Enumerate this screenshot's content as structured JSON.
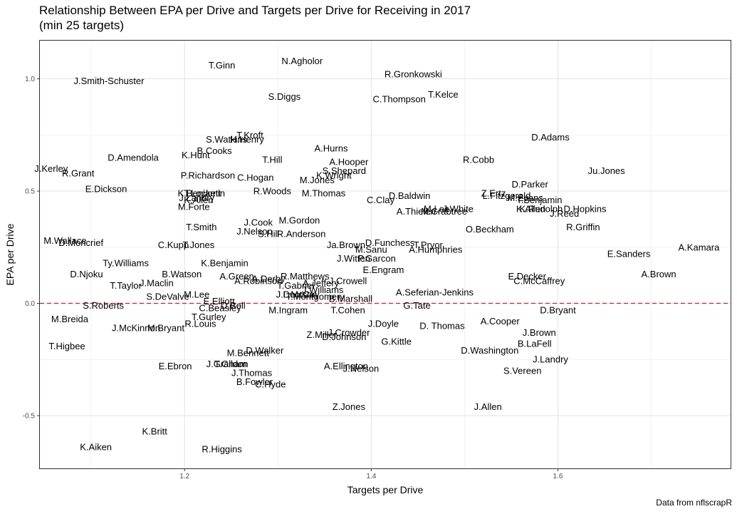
{
  "chart_data": {
    "type": "scatter",
    "title_line1": "Relationship Between EPA per Drive and Targets per Drive for Receiving in 2017",
    "title_line2": "(min 25 targets)",
    "xlabel": "Targets per Drive",
    "ylabel": "EPA per Drive",
    "caption": "Data from nflscrapR",
    "xlim": [
      1.045,
      1.785
    ],
    "ylim": [
      -0.735,
      1.17
    ],
    "xticks": [
      1.2,
      1.4,
      1.6
    ],
    "xtick_labels": [
      "1.2",
      "1.4",
      "1.6"
    ],
    "yticks": [
      -0.5,
      0.0,
      0.5,
      1.0
    ],
    "ytick_labels": [
      "-0.5",
      "0.0",
      "0.5",
      "1.0"
    ],
    "xminor": [
      1.1,
      1.3,
      1.5,
      1.7
    ],
    "yminor": [
      -0.25,
      0.25,
      0.75
    ],
    "hline": 0,
    "grid": true,
    "points": [
      {
        "label": "N.Agholor",
        "x": 1.326,
        "y": 1.08
      },
      {
        "label": "T.Ginn",
        "x": 1.24,
        "y": 1.06
      },
      {
        "label": "J.Smith-Schuster",
        "x": 1.119,
        "y": 0.99
      },
      {
        "label": "R.Gronkowski",
        "x": 1.445,
        "y": 1.02
      },
      {
        "label": "S.Diggs",
        "x": 1.307,
        "y": 0.92
      },
      {
        "label": "C.Thompson",
        "x": 1.43,
        "y": 0.91
      },
      {
        "label": "T.Kelce",
        "x": 1.477,
        "y": 0.93
      },
      {
        "label": "D.Adams",
        "x": 1.592,
        "y": 0.74
      },
      {
        "label": "T.Kroft",
        "x": 1.27,
        "y": 0.75
      },
      {
        "label": "H.Henry",
        "x": 1.267,
        "y": 0.73
      },
      {
        "label": "S.Watkins",
        "x": 1.245,
        "y": 0.73
      },
      {
        "label": "B.Cooks",
        "x": 1.232,
        "y": 0.68
      },
      {
        "label": "A.Hurns",
        "x": 1.357,
        "y": 0.69
      },
      {
        "label": "D.Amendola",
        "x": 1.145,
        "y": 0.65
      },
      {
        "label": "K.Hunt",
        "x": 1.212,
        "y": 0.66
      },
      {
        "label": "T.Hill",
        "x": 1.294,
        "y": 0.64
      },
      {
        "label": "A.Hooper",
        "x": 1.376,
        "y": 0.63
      },
      {
        "label": "R.Cobb",
        "x": 1.515,
        "y": 0.64
      },
      {
        "label": "S.Shepard",
        "x": 1.371,
        "y": 0.59
      },
      {
        "label": "K.Wright",
        "x": 1.36,
        "y": 0.57
      },
      {
        "label": "J.Kerley",
        "x": 1.057,
        "y": 0.6
      },
      {
        "label": "R.Grant",
        "x": 1.086,
        "y": 0.58
      },
      {
        "label": "Ju.Jones",
        "x": 1.652,
        "y": 0.59
      },
      {
        "label": "P.Richardson",
        "x": 1.225,
        "y": 0.57
      },
      {
        "label": "C.Hogan",
        "x": 1.276,
        "y": 0.56
      },
      {
        "label": "M.Jones",
        "x": 1.342,
        "y": 0.55
      },
      {
        "label": "D.Parker",
        "x": 1.57,
        "y": 0.53
      },
      {
        "label": "E.Dickson",
        "x": 1.116,
        "y": 0.51
      },
      {
        "label": "R.Woods",
        "x": 1.294,
        "y": 0.5
      },
      {
        "label": "M.Thomas",
        "x": 1.349,
        "y": 0.49
      },
      {
        "label": "T.Lockett",
        "x": 1.219,
        "y": 0.49
      },
      {
        "label": "K.Benjamin",
        "x": 1.218,
        "y": 0.49
      },
      {
        "label": "J.Landry",
        "x": 1.213,
        "y": 0.47
      },
      {
        "label": "K.Allen",
        "x": 1.215,
        "y": 0.46
      },
      {
        "label": "D.Baldwin",
        "x": 1.441,
        "y": 0.48
      },
      {
        "label": "C.Clay",
        "x": 1.41,
        "y": 0.46
      },
      {
        "label": "Z.Ertz",
        "x": 1.531,
        "y": 0.49
      },
      {
        "label": "L.Fitzgerald",
        "x": 1.545,
        "y": 0.48
      },
      {
        "label": "M.Evans",
        "x": 1.565,
        "y": 0.47
      },
      {
        "label": "T.Benjamin",
        "x": 1.58,
        "y": 0.46
      },
      {
        "label": "M.Forte",
        "x": 1.21,
        "y": 0.43
      },
      {
        "label": "A.Thielen",
        "x": 1.448,
        "y": 0.41
      },
      {
        "label": "M.Crabtree",
        "x": 1.478,
        "y": 0.41
      },
      {
        "label": "M.Lee",
        "x": 1.47,
        "y": 0.42
      },
      {
        "label": "J.White",
        "x": 1.493,
        "y": 0.42
      },
      {
        "label": "K.Allen",
        "x": 1.571,
        "y": 0.42
      },
      {
        "label": "K.Rudolph",
        "x": 1.582,
        "y": 0.42
      },
      {
        "label": "D.Hopkins",
        "x": 1.629,
        "y": 0.42
      },
      {
        "label": "J.Reed",
        "x": 1.607,
        "y": 0.4
      },
      {
        "label": "M.Gordon",
        "x": 1.323,
        "y": 0.37
      },
      {
        "label": "J.Cook",
        "x": 1.279,
        "y": 0.36
      },
      {
        "label": "T.Smith",
        "x": 1.218,
        "y": 0.34
      },
      {
        "label": "J.Nelson",
        "x": 1.275,
        "y": 0.32
      },
      {
        "label": "S.Hill",
        "x": 1.29,
        "y": 0.31
      },
      {
        "label": "R.Anderson",
        "x": 1.325,
        "y": 0.31
      },
      {
        "label": "O.Beckham",
        "x": 1.527,
        "y": 0.33
      },
      {
        "label": "R.Griffin",
        "x": 1.627,
        "y": 0.34
      },
      {
        "label": "M.Wallace",
        "x": 1.072,
        "y": 0.28
      },
      {
        "label": "D.Moncrief",
        "x": 1.089,
        "y": 0.27
      },
      {
        "label": "C.Kupp",
        "x": 1.188,
        "y": 0.26
      },
      {
        "label": "T.Jones",
        "x": 1.215,
        "y": 0.26
      },
      {
        "label": "Ja.Brown",
        "x": 1.373,
        "y": 0.26
      },
      {
        "label": "D.Funchess",
        "x": 1.42,
        "y": 0.27
      },
      {
        "label": "T.Pryor",
        "x": 1.461,
        "y": 0.26
      },
      {
        "label": "A.Humphries",
        "x": 1.469,
        "y": 0.24
      },
      {
        "label": "M.Sanu",
        "x": 1.4,
        "y": 0.24
      },
      {
        "label": "A.Kamara",
        "x": 1.751,
        "y": 0.25
      },
      {
        "label": "E.Sanders",
        "x": 1.676,
        "y": 0.22
      },
      {
        "label": "J.Witten",
        "x": 1.381,
        "y": 0.2
      },
      {
        "label": "P.Garcon",
        "x": 1.406,
        "y": 0.2
      },
      {
        "label": "Ty.Williams",
        "x": 1.137,
        "y": 0.18
      },
      {
        "label": "K.Benjamin",
        "x": 1.243,
        "y": 0.18
      },
      {
        "label": "E.Engram",
        "x": 1.413,
        "y": 0.15
      },
      {
        "label": "D.Njoku",
        "x": 1.095,
        "y": 0.13
      },
      {
        "label": "B.Watson",
        "x": 1.197,
        "y": 0.13
      },
      {
        "label": "R.Matthews",
        "x": 1.329,
        "y": 0.12
      },
      {
        "label": "A.Green",
        "x": 1.256,
        "y": 0.12
      },
      {
        "label": "A.Derby",
        "x": 1.29,
        "y": 0.11
      },
      {
        "label": "A.Robinson",
        "x": 1.279,
        "y": 0.1
      },
      {
        "label": "J.Crowell",
        "x": 1.375,
        "y": 0.1
      },
      {
        "label": "A.Jeffery",
        "x": 1.346,
        "y": 0.09
      },
      {
        "label": "E.Decker",
        "x": 1.567,
        "y": 0.12
      },
      {
        "label": "A.Brown",
        "x": 1.708,
        "y": 0.13
      },
      {
        "label": "C.McCaffrey",
        "x": 1.58,
        "y": 0.1
      },
      {
        "label": "J.Maclin",
        "x": 1.17,
        "y": 0.09
      },
      {
        "label": "T.Taylor",
        "x": 1.137,
        "y": 0.08
      },
      {
        "label": "T.Gabriel",
        "x": 1.319,
        "y": 0.08
      },
      {
        "label": "J.Williams",
        "x": 1.348,
        "y": 0.06
      },
      {
        "label": "M.Lee",
        "x": 1.213,
        "y": 0.04
      },
      {
        "label": "S.DeValve",
        "x": 1.182,
        "y": 0.03
      },
      {
        "label": "A.Seferian-Jenkins",
        "x": 1.468,
        "y": 0.05
      },
      {
        "label": "J.Doctson",
        "x": 1.32,
        "y": 0.04
      },
      {
        "label": "L.McCoy",
        "x": 1.325,
        "y": 0.04
      },
      {
        "label": "T.Montgomery",
        "x": 1.34,
        "y": 0.03
      },
      {
        "label": "B.Marshall",
        "x": 1.378,
        "y": 0.02
      },
      {
        "label": "E.Elliott",
        "x": 1.237,
        "y": 0.01
      },
      {
        "label": "D.Bell",
        "x": 1.252,
        "y": -0.01
      },
      {
        "label": "C.Beasley",
        "x": 1.238,
        "y": -0.02
      },
      {
        "label": "S.Roberts",
        "x": 1.113,
        "y": -0.01
      },
      {
        "label": "M.Ingram",
        "x": 1.311,
        "y": -0.03
      },
      {
        "label": "G.Tate",
        "x": 1.449,
        "y": -0.01
      },
      {
        "label": "T.Cohen",
        "x": 1.375,
        "y": -0.03
      },
      {
        "label": "D.Bryant",
        "x": 1.6,
        "y": -0.03
      },
      {
        "label": "T.Gurley",
        "x": 1.226,
        "y": -0.06
      },
      {
        "label": "M.Breida",
        "x": 1.077,
        "y": -0.07
      },
      {
        "label": "R.Louis",
        "x": 1.217,
        "y": -0.09
      },
      {
        "label": "J.McKinnon",
        "x": 1.148,
        "y": -0.11
      },
      {
        "label": "M.Bryant",
        "x": 1.18,
        "y": -0.11
      },
      {
        "label": "J.Doyle",
        "x": 1.413,
        "y": -0.09
      },
      {
        "label": "D. Thomas",
        "x": 1.476,
        "y": -0.1
      },
      {
        "label": "A.Cooper",
        "x": 1.538,
        "y": -0.08
      },
      {
        "label": "J.Crowder",
        "x": 1.376,
        "y": -0.13
      },
      {
        "label": "Z.Miller",
        "x": 1.347,
        "y": -0.14
      },
      {
        "label": "D.Johnson",
        "x": 1.371,
        "y": -0.15
      },
      {
        "label": "J.Brown",
        "x": 1.58,
        "y": -0.13
      },
      {
        "label": "G.Kittle",
        "x": 1.427,
        "y": -0.17
      },
      {
        "label": "B.LaFell",
        "x": 1.575,
        "y": -0.18
      },
      {
        "label": "T.Higbee",
        "x": 1.074,
        "y": -0.19
      },
      {
        "label": "D.Washington",
        "x": 1.527,
        "y": -0.21
      },
      {
        "label": "M.Bennett",
        "x": 1.268,
        "y": -0.22
      },
      {
        "label": "D.Walker",
        "x": 1.286,
        "y": -0.21
      },
      {
        "label": "J.Landry",
        "x": 1.592,
        "y": -0.25
      },
      {
        "label": "J.Graham",
        "x": 1.245,
        "y": -0.27
      },
      {
        "label": "T.Gildon",
        "x": 1.25,
        "y": -0.27
      },
      {
        "label": "E.Ebron",
        "x": 1.19,
        "y": -0.28
      },
      {
        "label": "A.Ellington",
        "x": 1.373,
        "y": -0.28
      },
      {
        "label": "J.Nelson",
        "x": 1.389,
        "y": -0.29
      },
      {
        "label": "S.Vereen",
        "x": 1.562,
        "y": -0.3
      },
      {
        "label": "J.Thomas",
        "x": 1.272,
        "y": -0.31
      },
      {
        "label": "B.Fowler",
        "x": 1.275,
        "y": -0.35
      },
      {
        "label": "C.Hyde",
        "x": 1.292,
        "y": -0.36
      },
      {
        "label": "Z.Jones",
        "x": 1.376,
        "y": -0.46
      },
      {
        "label": "J.Allen",
        "x": 1.525,
        "y": -0.46
      },
      {
        "label": "K.Britt",
        "x": 1.168,
        "y": -0.57
      },
      {
        "label": "K.Aiken",
        "x": 1.105,
        "y": -0.64
      },
      {
        "label": "R.Higgins",
        "x": 1.24,
        "y": -0.65
      }
    ]
  }
}
